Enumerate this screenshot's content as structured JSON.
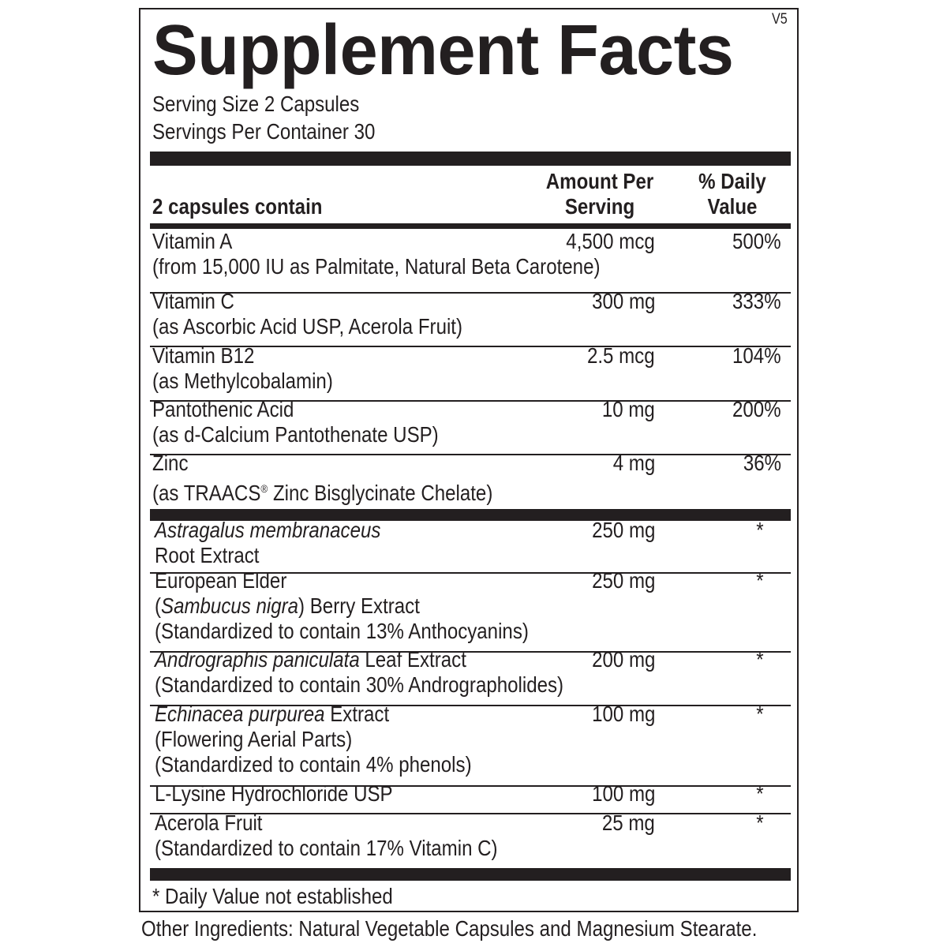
{
  "label": {
    "title": "Supplement Facts",
    "version": "V5",
    "serving_size": "Serving Size 2 Capsules",
    "servings_per_container": "Servings Per Container 30",
    "header": {
      "contains": "2 capsules contain",
      "amount_line1": "Amount Per",
      "amount_line2": "Serving",
      "dv_line1": "% Daily",
      "dv_line2": "Value"
    },
    "vitamins": [
      {
        "lines": [
          [
            {
              "text": "Vitamin A"
            }
          ],
          [
            {
              "text": "(from 15,000 IU as Palmitate, Natural Beta Carotene)"
            }
          ]
        ],
        "amount": "4,500 mcg",
        "dv": "500%"
      },
      {
        "lines": [
          [
            {
              "text": "Vitamin C"
            }
          ],
          [
            {
              "text": "(as Ascorbic Acid USP, Acerola Fruit)"
            }
          ]
        ],
        "amount": "300 mg",
        "dv": "333%"
      },
      {
        "lines": [
          [
            {
              "text": "Vitamin B12"
            }
          ],
          [
            {
              "text": "(as Methylcobalamin)"
            }
          ]
        ],
        "amount": "2.5 mcg",
        "dv": "104%"
      },
      {
        "lines": [
          [
            {
              "text": "Pantothenic Acid"
            }
          ],
          [
            {
              "text": "(as d-Calcium Pantothenate USP)"
            }
          ]
        ],
        "amount": "10 mg",
        "dv": "200%"
      },
      {
        "lines": [
          [
            {
              "text": "Zinc"
            }
          ],
          [
            {
              "text": "(as TRAACS"
            },
            {
              "text": "®",
              "sup": true
            },
            {
              "text": " Zinc Bisglycinate Chelate)"
            }
          ]
        ],
        "amount": "4 mg",
        "dv": "36%"
      }
    ],
    "botanicals": [
      {
        "lines": [
          [
            {
              "text": "Astragalus membranaceus",
              "italic": true
            }
          ],
          [
            {
              "text": "Root Extract"
            }
          ]
        ],
        "amount": "250 mg",
        "dv": "*"
      },
      {
        "lines": [
          [
            {
              "text": "European Elder"
            }
          ],
          [
            {
              "text": "("
            },
            {
              "text": "Sambucus nigra",
              "italic": true
            },
            {
              "text": ") Berry Extract"
            }
          ],
          [
            {
              "text": "(Standardized to contain 13% Anthocyanins)"
            }
          ]
        ],
        "amount": "250 mg",
        "dv": "*"
      },
      {
        "lines": [
          [
            {
              "text": "Andrographis paniculata",
              "italic": true
            },
            {
              "text": " Leaf Extract"
            }
          ],
          [
            {
              "text": "(Standardized to contain 30% Andrographolides)"
            }
          ]
        ],
        "amount": "200 mg",
        "dv": "*"
      },
      {
        "lines": [
          [
            {
              "text": "Echinacea purpurea",
              "italic": true
            },
            {
              "text": " Extract"
            }
          ],
          [
            {
              "text": "(Flowering Aerial Parts)"
            }
          ],
          [
            {
              "text": "(Standardized to contain 4% phenols)"
            }
          ]
        ],
        "amount": "100 mg",
        "dv": "*"
      },
      {
        "lines": [
          [
            {
              "text": "L-Lysine Hydrochloride USP"
            }
          ]
        ],
        "amount": "100 mg",
        "dv": "*"
      },
      {
        "lines": [
          [
            {
              "text": "Acerola Fruit"
            }
          ],
          [
            {
              "text": "(Standardized to contain 17% Vitamin C)"
            }
          ]
        ],
        "amount": "25 mg",
        "dv": "*"
      }
    ],
    "footnote": "* Daily Value not established",
    "other_ingredients": "Other Ingredients: Natural Vegetable Capsules and Magnesium Stearate."
  }
}
